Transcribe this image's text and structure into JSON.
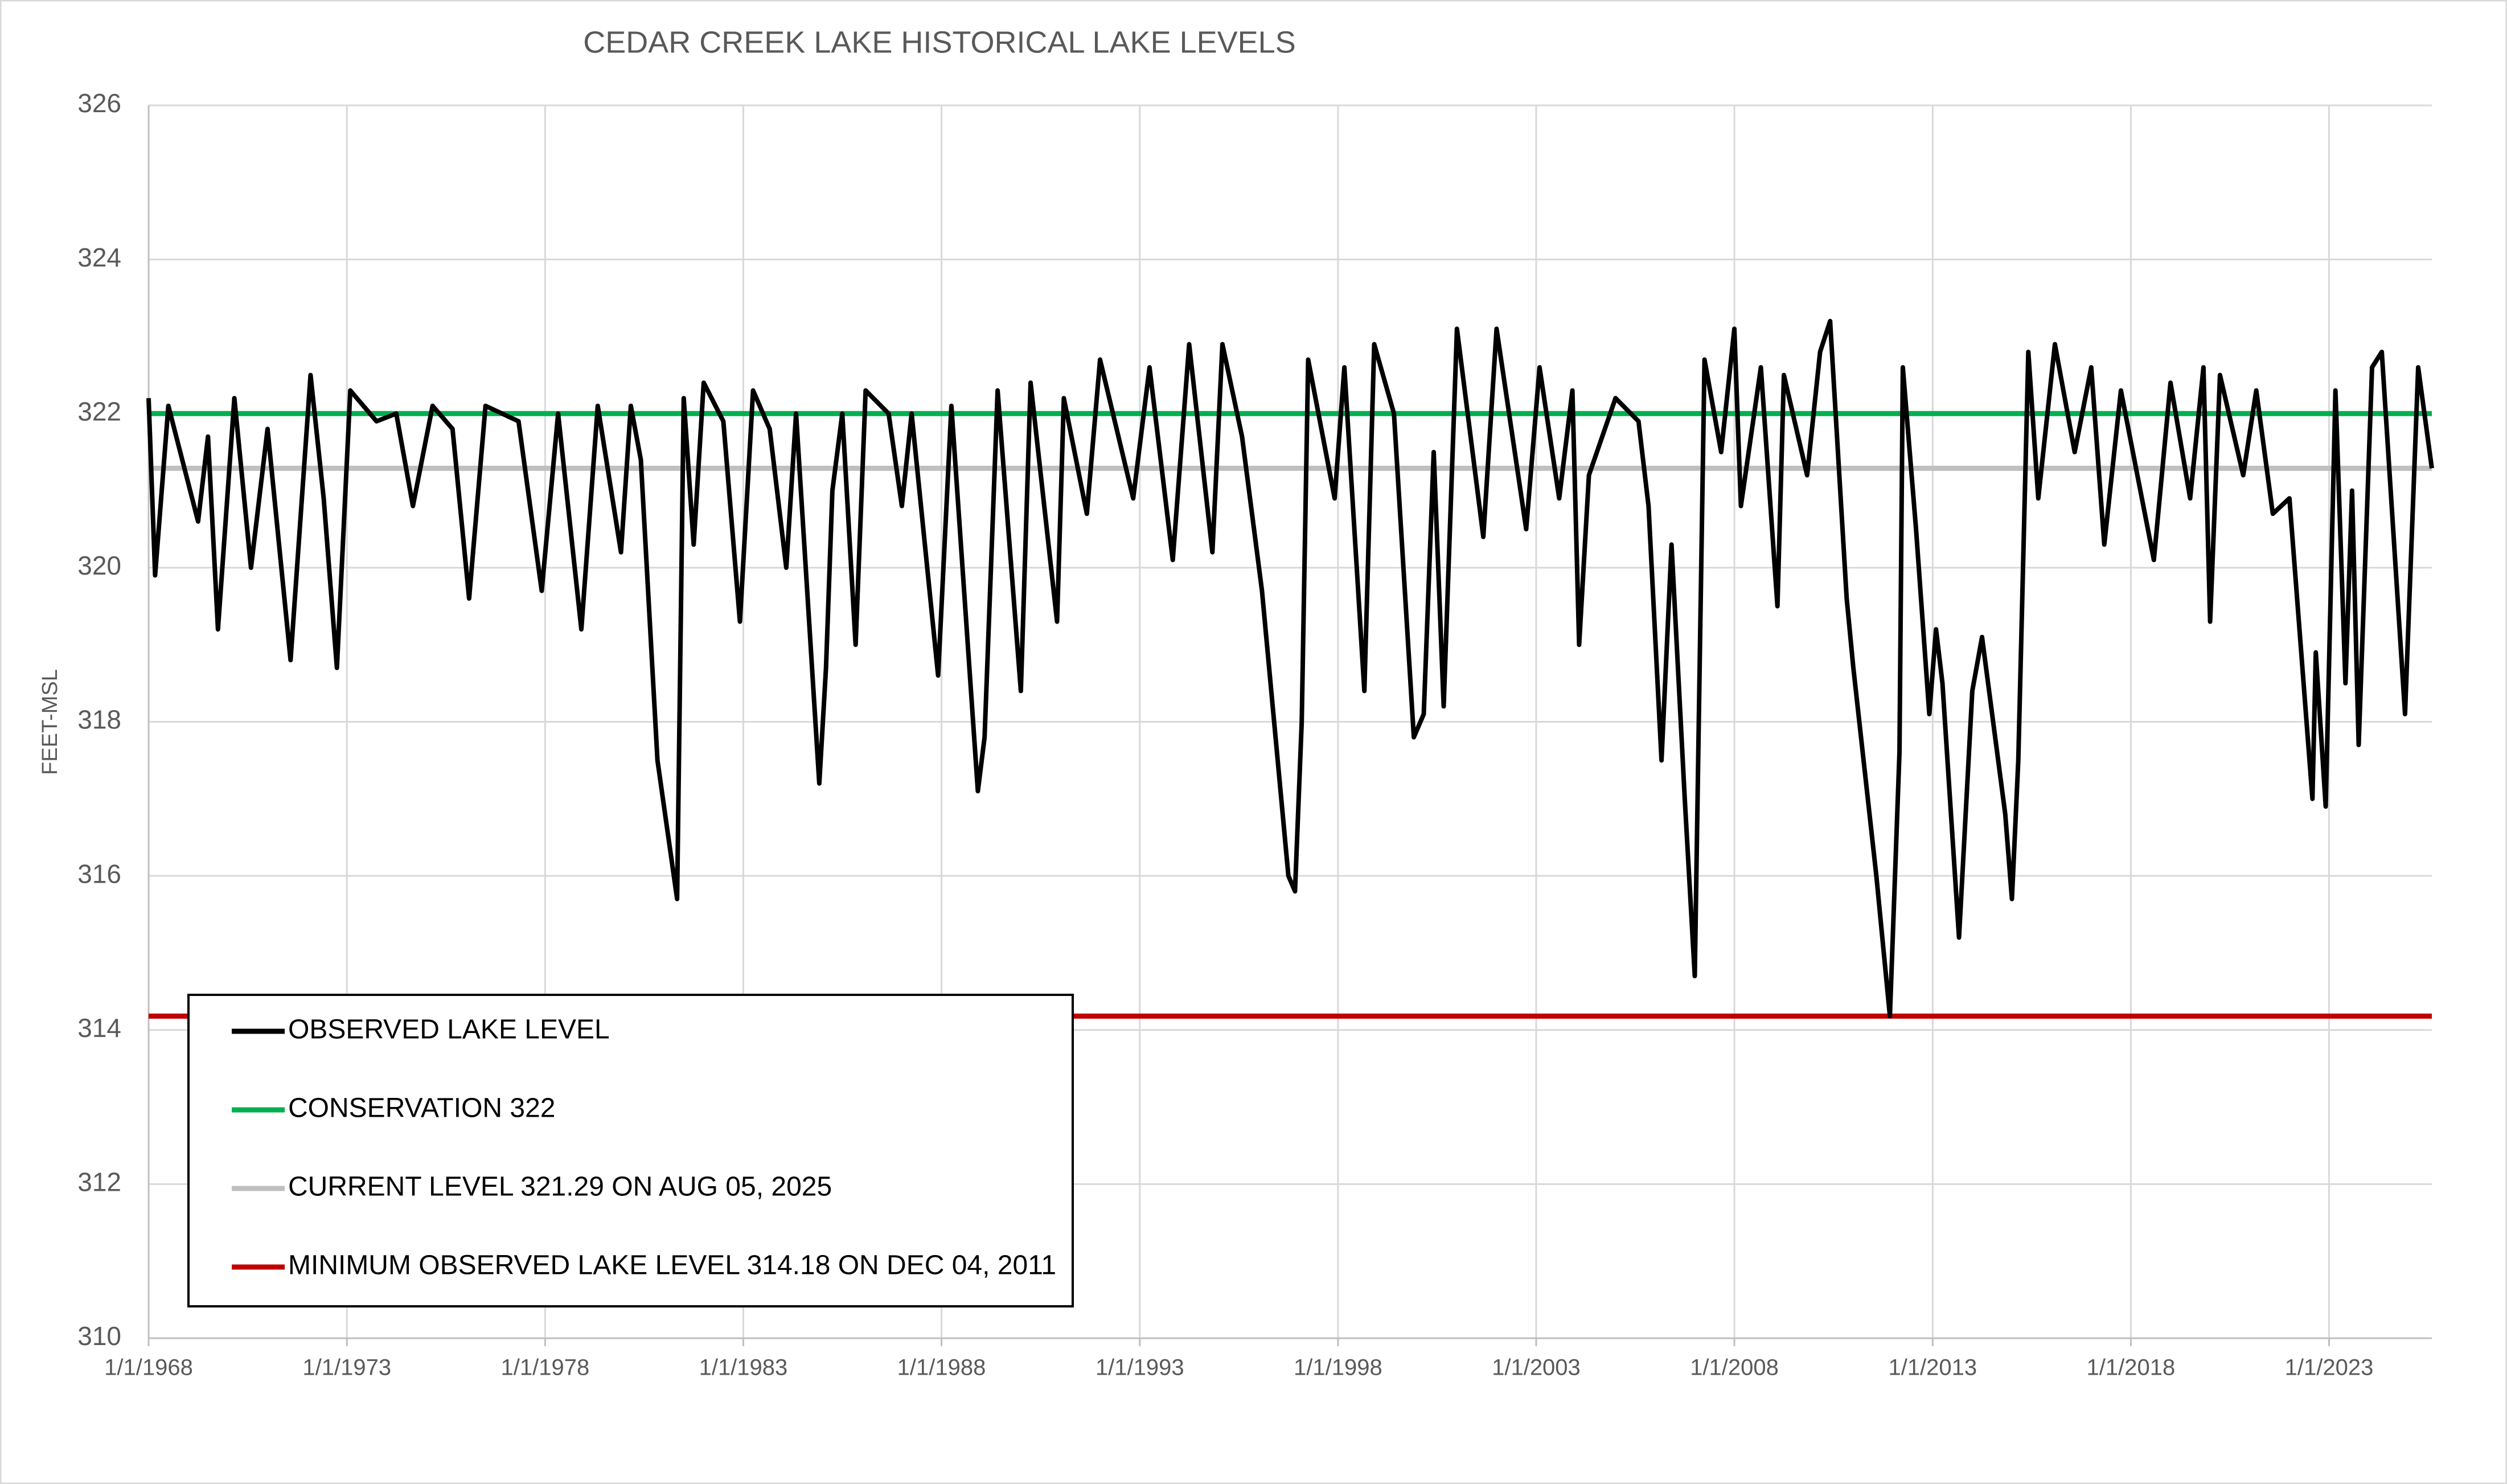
{
  "chart_data": {
    "type": "line",
    "title": "CEDAR CREEK LAKE HISTORICAL LAKE LEVELS",
    "y_label": "FEET-MSL",
    "xlim": [
      "1968-01-01",
      "2025-08-05"
    ],
    "xticks": [
      {
        "value": "1968-01-01",
        "label": "1/1/1968"
      },
      {
        "value": "1973-01-01",
        "label": "1/1/1973"
      },
      {
        "value": "1978-01-01",
        "label": "1/1/1978"
      },
      {
        "value": "1983-01-01",
        "label": "1/1/1983"
      },
      {
        "value": "1988-01-01",
        "label": "1/1/1988"
      },
      {
        "value": "1993-01-01",
        "label": "1/1/1993"
      },
      {
        "value": "1998-01-01",
        "label": "1/1/1998"
      },
      {
        "value": "2003-01-01",
        "label": "1/1/2003"
      },
      {
        "value": "2008-01-01",
        "label": "1/1/2008"
      },
      {
        "value": "2013-01-01",
        "label": "1/1/2013"
      },
      {
        "value": "2018-01-01",
        "label": "1/1/2018"
      },
      {
        "value": "2023-01-01",
        "label": "1/1/2023"
      }
    ],
    "ylim": [
      310,
      326
    ],
    "yticks": [
      310,
      312,
      314,
      316,
      318,
      320,
      322,
      324,
      326
    ],
    "grid": true,
    "x": [
      "1968-01-01",
      "1968-03-01",
      "1968-07-01",
      "1969-04-01",
      "1969-07-01",
      "1969-10-01",
      "1970-03-01",
      "1970-08-01",
      "1971-01-01",
      "1971-08-01",
      "1972-02-01",
      "1972-06-01",
      "1972-10-01",
      "1973-02-01",
      "1973-10-01",
      "1974-04-01",
      "1974-09-01",
      "1975-03-01",
      "1975-09-01",
      "1976-02-01",
      "1976-07-01",
      "1977-05-01",
      "1977-12-01",
      "1978-05-01",
      "1978-12-01",
      "1979-05-01",
      "1979-12-01",
      "1980-03-01",
      "1980-06-01",
      "1980-11-01",
      "1981-05-01",
      "1981-07-01",
      "1981-10-01",
      "1982-01-01",
      "1982-07-01",
      "1982-12-01",
      "1983-04-01",
      "1983-09-01",
      "1984-02-01",
      "1984-05-01",
      "1984-12-01",
      "1985-02-01",
      "1985-04-01",
      "1985-07-01",
      "1985-11-01",
      "1986-02-01",
      "1986-09-01",
      "1987-01-01",
      "1987-04-01",
      "1987-12-01",
      "1988-04-01",
      "1988-12-01",
      "1989-02-01",
      "1989-06-01",
      "1990-01-01",
      "1990-04-01",
      "1990-12-01",
      "1991-02-01",
      "1991-09-01",
      "1992-01-01",
      "1992-11-01",
      "1993-04-01",
      "1993-11-01",
      "1994-04-01",
      "1994-11-01",
      "1995-02-01",
      "1995-08-01",
      "1996-02-01",
      "1996-10-01",
      "1996-12-01",
      "1997-02-01",
      "1997-04-01",
      "1997-12-01",
      "1998-03-01",
      "1998-09-01",
      "1998-12-01",
      "1999-06-01",
      "1999-12-01",
      "2000-03-01",
      "2000-06-01",
      "2000-09-01",
      "2001-01-01",
      "2001-09-01",
      "2002-01-01",
      "2002-10-01",
      "2003-02-01",
      "2003-08-01",
      "2003-12-01",
      "2004-02-01",
      "2004-05-01",
      "2005-01-01",
      "2005-08-01",
      "2005-11-01",
      "2006-03-01",
      "2006-06-01",
      "2006-10-01",
      "2007-01-01",
      "2007-04-01",
      "2007-09-01",
      "2008-01-01",
      "2008-03-01",
      "2008-09-01",
      "2009-02-01",
      "2009-04-01",
      "2009-11-01",
      "2010-03-01",
      "2010-06-01",
      "2010-11-01",
      "2011-01-01",
      "2011-08-01",
      "2011-12-04",
      "2012-03-01",
      "2012-04-01",
      "2012-08-01",
      "2012-12-01",
      "2013-02-01",
      "2013-04-01",
      "2013-09-01",
      "2014-01-01",
      "2014-04-01",
      "2014-11-01",
      "2015-01-01",
      "2015-03-01",
      "2015-06-01",
      "2015-09-01",
      "2016-02-01",
      "2016-08-01",
      "2017-01-01",
      "2017-05-01",
      "2017-10-01",
      "2018-08-01",
      "2019-01-01",
      "2019-07-01",
      "2019-11-01",
      "2020-01-01",
      "2020-04-01",
      "2020-11-01",
      "2021-03-01",
      "2021-08-01",
      "2022-01-01",
      "2022-08-01",
      "2022-09-01",
      "2022-12-01",
      "2023-03-01",
      "2023-06-01",
      "2023-08-01",
      "2023-10-01",
      "2024-02-01",
      "2024-05-01",
      "2024-12-01",
      "2025-04-01",
      "2025-08-05"
    ],
    "series": [
      {
        "name": "OBSERVED LAKE LEVEL",
        "color": "#000000",
        "values": [
          322.2,
          319.9,
          322.1,
          320.6,
          321.7,
          319.2,
          322.2,
          320.0,
          321.8,
          318.8,
          322.5,
          320.9,
          318.7,
          322.3,
          321.9,
          322.0,
          320.8,
          322.1,
          321.8,
          319.6,
          322.1,
          321.9,
          319.7,
          322.0,
          319.2,
          322.1,
          320.2,
          322.1,
          321.4,
          317.5,
          315.7,
          322.2,
          320.3,
          322.4,
          321.9,
          319.3,
          322.3,
          321.8,
          320.0,
          322.0,
          317.2,
          318.7,
          321.0,
          322.0,
          319.0,
          322.3,
          322.0,
          320.8,
          322.0,
          318.6,
          322.1,
          317.1,
          317.8,
          322.3,
          318.4,
          322.4,
          319.3,
          322.2,
          320.7,
          322.7,
          320.9,
          322.6,
          320.1,
          322.9,
          320.2,
          322.9,
          321.7,
          319.7,
          316.0,
          315.8,
          318.0,
          322.7,
          320.9,
          322.6,
          318.4,
          322.9,
          322.0,
          317.8,
          318.1,
          321.5,
          318.2,
          323.1,
          320.4,
          323.1,
          320.5,
          322.6,
          320.9,
          322.3,
          319.0,
          321.2,
          322.2,
          321.9,
          320.8,
          317.5,
          320.3,
          317.0,
          314.7,
          322.7,
          321.5,
          323.1,
          320.8,
          322.6,
          319.5,
          322.5,
          321.2,
          322.8,
          323.2,
          319.6,
          318.7,
          316.0,
          314.18,
          317.6,
          322.6,
          320.5,
          318.1,
          319.2,
          318.5,
          315.2,
          318.4,
          319.1,
          316.8,
          315.7,
          317.5,
          322.8,
          320.9,
          322.9,
          321.5,
          322.6,
          320.3,
          322.3,
          320.1,
          322.4,
          320.9,
          322.6,
          319.3,
          322.5,
          321.2,
          322.3,
          320.7,
          320.9,
          317.0,
          318.9,
          316.9,
          322.3,
          318.5,
          321.0,
          317.7,
          322.6,
          322.8,
          318.1,
          322.6,
          321.29
        ]
      }
    ],
    "reference_lines": [
      {
        "name": "CONSERVATION 322",
        "color": "#00b050",
        "value": 322
      },
      {
        "name": "CURRENT LEVEL 321.29 ON AUG 05, 2025",
        "color": "#bfbfbf",
        "value": 321.29
      },
      {
        "name": "MINIMUM OBSERVED LAKE LEVEL 314.18 ON DEC 04, 2011",
        "color": "#c00000",
        "value": 314.18
      }
    ],
    "legend": "lower left"
  }
}
